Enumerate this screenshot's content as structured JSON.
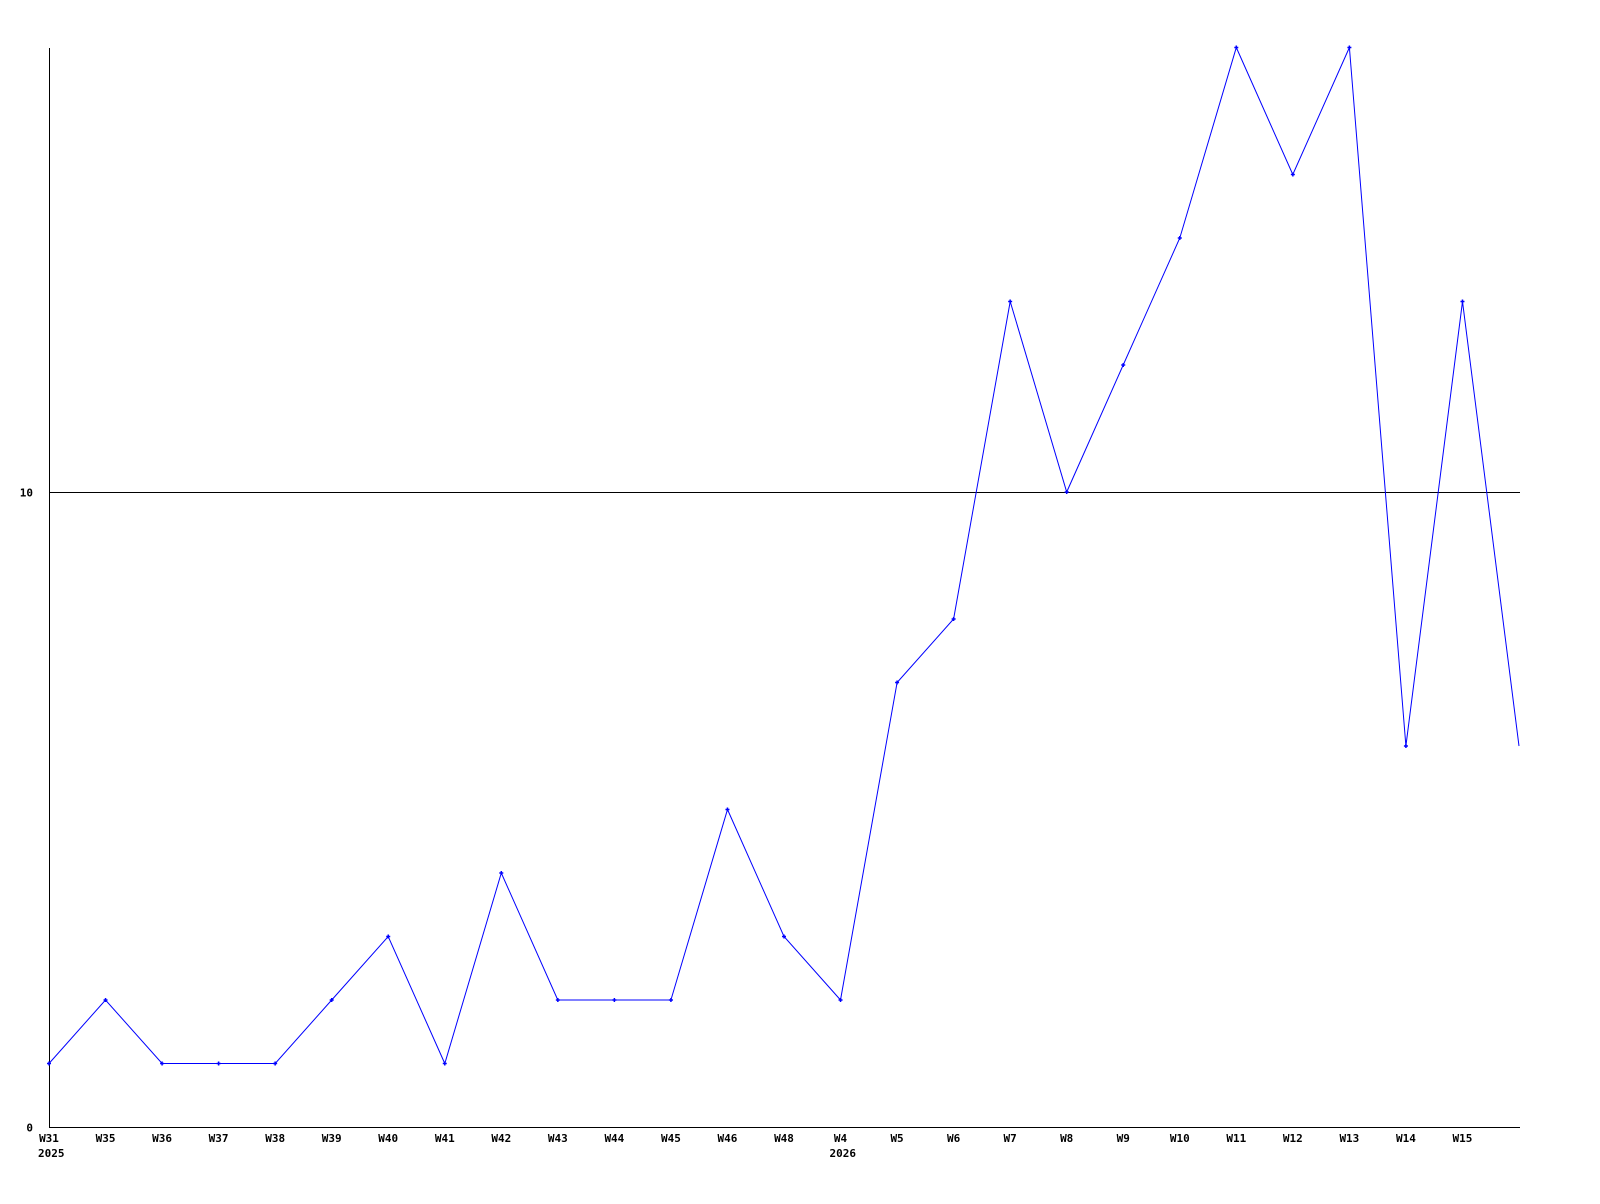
{
  "chart_data": {
    "type": "line",
    "title": "",
    "xlabel": "",
    "ylabel": "",
    "categories": [
      "W31",
      "W35",
      "W36",
      "W37",
      "W38",
      "W39",
      "W40",
      "W41",
      "W42",
      "W43",
      "W44",
      "W45",
      "W46",
      "W48",
      "W4",
      "W5",
      "W6",
      "W7",
      "W8",
      "W9",
      "W10",
      "W11",
      "W12",
      "W13",
      "W14",
      "W15",
      ""
    ],
    "year_labels": [
      {
        "at": "W31",
        "text": "2025"
      },
      {
        "at": "W4",
        "text": "2026"
      }
    ],
    "series": [
      {
        "values": [
          1,
          2,
          1,
          1,
          1,
          2,
          3,
          1,
          4,
          2,
          2,
          2,
          5,
          3,
          2,
          7,
          8,
          13,
          10,
          12,
          14,
          17,
          15,
          17,
          6,
          13,
          6
        ],
        "color": "#0000ff"
      }
    ],
    "ylim": [
      0,
      17
    ],
    "yticks": [
      {
        "value": 0,
        "label": "0"
      },
      {
        "value": 10,
        "label": "10"
      }
    ],
    "grid": "horizontal line at 10",
    "legend": "none"
  }
}
